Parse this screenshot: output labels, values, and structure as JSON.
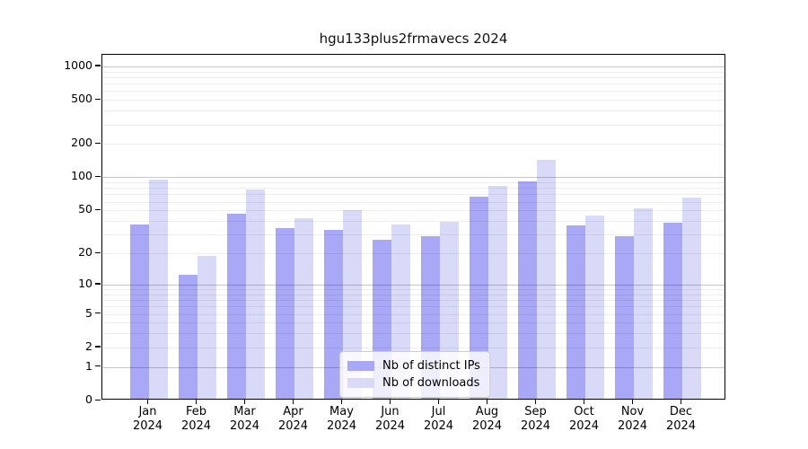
{
  "chart_data": {
    "type": "bar",
    "title": "hgu133plus2frmavecs 2024",
    "year": "2024",
    "categories": [
      "Jan",
      "Feb",
      "Mar",
      "Apr",
      "May",
      "Jun",
      "Jul",
      "Aug",
      "Sep",
      "Oct",
      "Nov",
      "Dec"
    ],
    "series": [
      {
        "name": "Nb of distinct IPs",
        "color": "#a8a8f6",
        "values": [
          36,
          12,
          45,
          33,
          32,
          26,
          28,
          64,
          88,
          35,
          28,
          37
        ]
      },
      {
        "name": "Nb of downloads",
        "color": "#d9d9f8",
        "values": [
          92,
          18,
          75,
          41,
          48,
          36,
          38,
          80,
          140,
          43,
          50,
          63
        ]
      }
    ],
    "yscale": "log1p",
    "yticks": [
      0,
      1,
      2,
      5,
      10,
      20,
      50,
      100,
      200,
      500,
      1000
    ],
    "ylim": [
      0,
      1250
    ],
    "grid": true,
    "legend_position": "bottom-center"
  },
  "colors": {
    "background": "#ffffff",
    "major_grid": "rgba(0,0,0,0.22)",
    "minor_grid": "rgba(0,0,0,0.065)",
    "axis": "#000000",
    "text": "#000000",
    "legend_border": "#cccccc",
    "legend_background": "rgba(255,255,255,0.8)"
  }
}
